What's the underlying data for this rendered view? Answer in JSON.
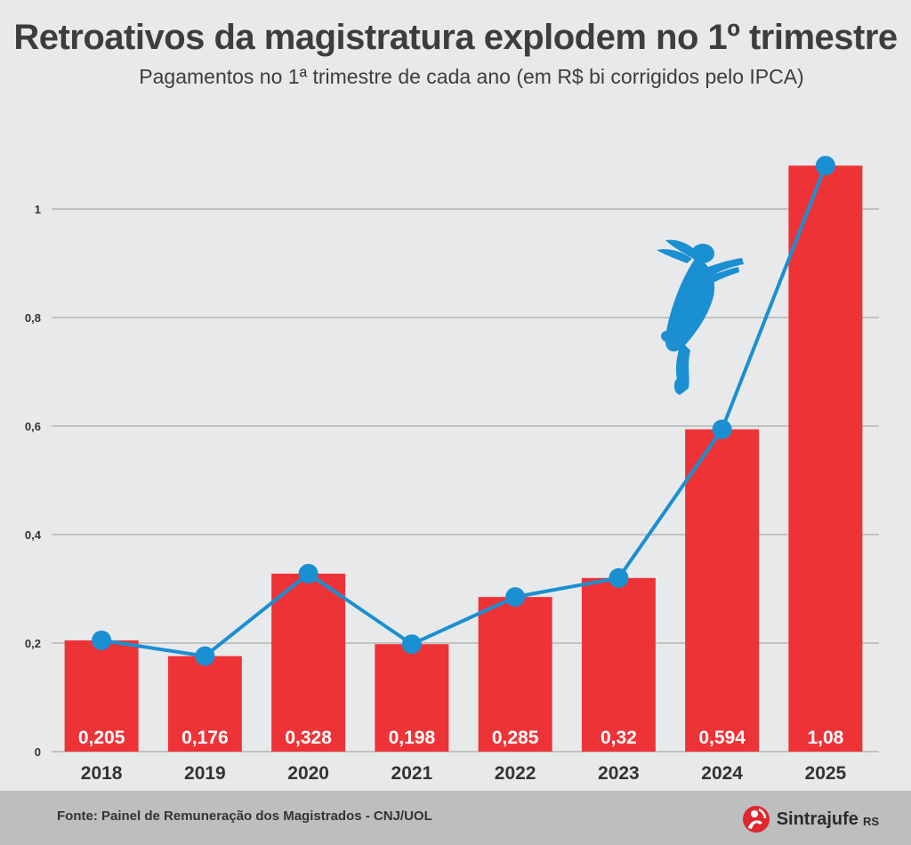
{
  "title": "Retroativos da magistratura explodem no 1º trimestre",
  "subtitle": "Pagamentos no 1ª trimestre de cada ano (em R$ bi corrigidos pelo IPCA)",
  "footer": {
    "source": "Fonte: Painel de Remuneração dos Magistrados - CNJ/UOL",
    "brand": "Sintrajufe",
    "brand_suffix": "RS"
  },
  "colors": {
    "bar": "#ee3337",
    "line": "#1a8fd1",
    "background": "#e8e9eb",
    "footer": "#bdbec0",
    "rabbit": "#1a8fd1"
  },
  "icons": [
    "rabbit-icon",
    "sintrajufe-logo-icon"
  ],
  "chart_data": {
    "type": "bar",
    "title": "Retroativos da magistratura explodem no 1º trimestre",
    "subtitle": "Pagamentos no 1ª trimestre de cada ano (em R$ bi corrigidos pelo IPCA)",
    "categories": [
      "2018",
      "2019",
      "2020",
      "2021",
      "2022",
      "2023",
      "2024",
      "2025"
    ],
    "values": [
      0.205,
      0.176,
      0.328,
      0.198,
      0.285,
      0.32,
      0.594,
      1.08
    ],
    "value_labels": [
      "0,205",
      "0,176",
      "0,328",
      "0,198",
      "0,285",
      "0,32",
      "0,594",
      "1,08"
    ],
    "overlay_line": true,
    "ylim": [
      0,
      1.1
    ],
    "yticks": [
      0,
      0.2,
      0.4,
      0.6,
      0.8,
      1
    ],
    "ytick_labels": [
      "0",
      "0,2",
      "0,4",
      "0,6",
      "0,8",
      "1"
    ],
    "grid": true,
    "xlabel": "",
    "ylabel": ""
  }
}
